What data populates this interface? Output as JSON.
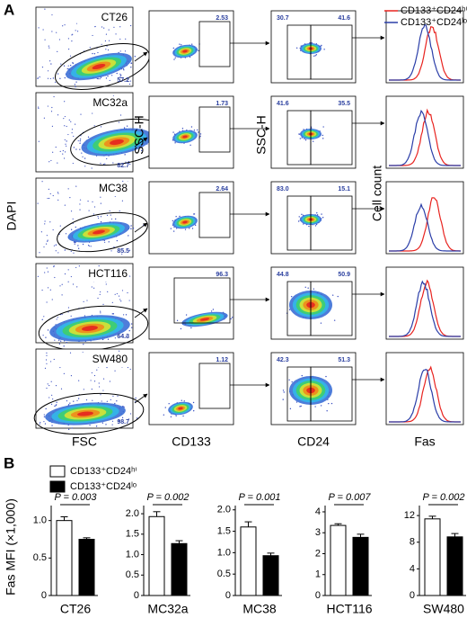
{
  "panel_a": {
    "label": "A",
    "columns": [
      {
        "y_label": "DAPI",
        "x_label": "FSC"
      },
      {
        "y_label": "SSC-H",
        "x_label": "CD133"
      },
      {
        "y_label": "SSC-H",
        "x_label": "CD24"
      },
      {
        "y_label": "Cell count",
        "x_label": "Fas"
      }
    ],
    "legend": [
      {
        "name": "CD133⁺CD24ʰⁱ",
        "color": "#e8231f"
      },
      {
        "name": "CD133⁺CD24ˡᵒ",
        "color": "#2b3ea8"
      }
    ],
    "rows": [
      {
        "cell_line": "CT26",
        "fsc_gate": "57.2",
        "cd133_gate": "2.53",
        "cd24_gates": [
          "30.7",
          "41.6"
        ]
      },
      {
        "cell_line": "MC32a",
        "fsc_gate": "82.7",
        "cd133_gate": "1.73",
        "cd24_gates": [
          "41.6",
          "35.5"
        ]
      },
      {
        "cell_line": "MC38",
        "fsc_gate": "85.5",
        "cd133_gate": "2.64",
        "cd24_gates": [
          "83.0",
          "15.1"
        ]
      },
      {
        "cell_line": "HCT116",
        "fsc_gate": "64.3",
        "cd133_gate": "96.3",
        "cd24_gates": [
          "44.8",
          "50.9"
        ]
      },
      {
        "cell_line": "SW480",
        "fsc_gate": "98.7",
        "cd133_gate": "1.12",
        "cd24_gates": [
          "42.3",
          "51.3"
        ]
      }
    ]
  },
  "panel_b": {
    "label": "B",
    "y_label": "Fas MFI (×1,000)",
    "legend": [
      {
        "name": "CD133⁺CD24ʰⁱ",
        "color": "#ffffff"
      },
      {
        "name": "CD133⁺CD24ˡᵒ",
        "color": "#000000"
      }
    ]
  },
  "chart_data": [
    {
      "type": "bar",
      "title": "CT26",
      "values": [
        1.0,
        0.75
      ],
      "errors": [
        0.05,
        0.02
      ],
      "annotation": "P = 0.003",
      "ylim": [
        0,
        1.2
      ],
      "yticks": [
        0,
        0.5,
        {
          "value": 1,
          "label": "1.0"
        }
      ]
    },
    {
      "type": "bar",
      "title": "MC32a",
      "values": [
        1.93,
        1.27
      ],
      "errors": [
        0.12,
        0.07
      ],
      "annotation": "P = 0.002",
      "ylim": [
        0,
        2.2
      ],
      "yticks": [
        0,
        0.5,
        {
          "value": 1,
          "label": "1.0"
        },
        1.5,
        {
          "value": 2,
          "label": "2.0"
        }
      ]
    },
    {
      "type": "bar",
      "title": "MC38",
      "values": [
        1.6,
        0.93
      ],
      "errors": [
        0.12,
        0.06
      ],
      "annotation": "P = 0.001",
      "ylim": [
        0,
        2.1
      ],
      "yticks": [
        0,
        0.5,
        {
          "value": 1,
          "label": "1.0"
        },
        1.5,
        {
          "value": 2,
          "label": "2.0"
        }
      ]
    },
    {
      "type": "bar",
      "title": "HCT116",
      "values": [
        3.35,
        2.78
      ],
      "errors": [
        0.08,
        0.15
      ],
      "annotation": "P = 0.007",
      "ylim": [
        0,
        4.3
      ],
      "yticks": [
        0,
        1,
        2,
        3,
        4
      ]
    },
    {
      "type": "bar",
      "title": "SW480",
      "values": [
        11.5,
        8.8
      ],
      "errors": [
        0.4,
        0.5
      ],
      "annotation": "P = 0.002",
      "ylim": [
        0,
        13.5
      ],
      "yticks": [
        0,
        4,
        8,
        12
      ]
    }
  ]
}
